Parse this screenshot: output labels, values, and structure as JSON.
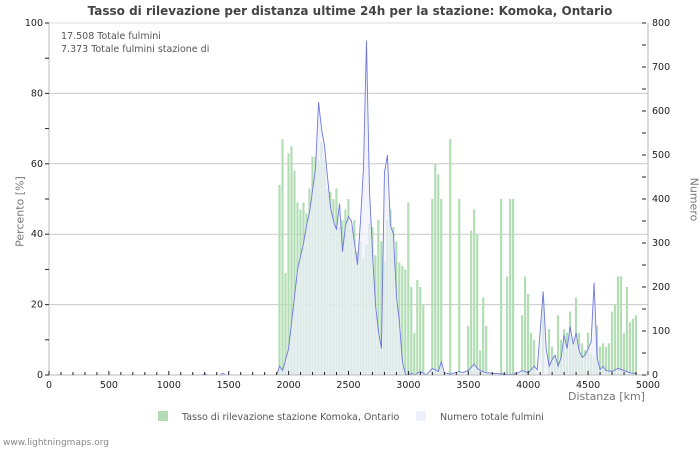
{
  "chart_data": {
    "type": "bar+area",
    "title": "Tasso di rilevazione per distanza ultime 24h per la stazione: Komoka, Ontario",
    "annotations": [
      "17.508 Totale fulmini",
      "7.373 Totale fulmini stazione di"
    ],
    "xlabel": "Distanza   [km]",
    "ylabel_left": "Percento   [%]",
    "ylabel_right": "Numero",
    "xlim": [
      0,
      5000
    ],
    "ylim_left": [
      0,
      100
    ],
    "ylim_right": [
      0,
      800
    ],
    "x_ticks": [
      0,
      500,
      1000,
      1500,
      2000,
      2500,
      3000,
      3500,
      4000,
      4500,
      5000
    ],
    "y_ticks_left": [
      0,
      20,
      40,
      60,
      80,
      100
    ],
    "y_ticks_right": [
      0,
      100,
      200,
      300,
      400,
      500,
      600,
      700,
      800
    ],
    "grid": true,
    "legend_position": "bottom",
    "bin_width_km": 25,
    "series": [
      {
        "name": "Tasso di rilevazione stazione Komoka, Ontario",
        "type": "bar",
        "axis": "left",
        "color": "#b3deb5",
        "x": [
          1925,
          1950,
          1975,
          2000,
          2025,
          2050,
          2075,
          2100,
          2125,
          2150,
          2175,
          2200,
          2225,
          2250,
          2275,
          2300,
          2325,
          2350,
          2375,
          2400,
          2425,
          2450,
          2475,
          2500,
          2525,
          2550,
          2575,
          2600,
          2625,
          2650,
          2675,
          2700,
          2725,
          2750,
          2775,
          2800,
          2825,
          2850,
          2875,
          2900,
          2925,
          2950,
          2975,
          3000,
          3025,
          3050,
          3075,
          3100,
          3125,
          3200,
          3225,
          3250,
          3275,
          3350,
          3425,
          3500,
          3525,
          3550,
          3575,
          3600,
          3625,
          3650,
          3775,
          3825,
          3850,
          3875,
          3950,
          3975,
          4000,
          4025,
          4050,
          4125,
          4175,
          4200,
          4225,
          4250,
          4275,
          4300,
          4325,
          4350,
          4375,
          4400,
          4425,
          4450,
          4475,
          4500,
          4525,
          4550,
          4575,
          4600,
          4625,
          4650,
          4675,
          4700,
          4725,
          4750,
          4775,
          4800,
          4825,
          4850,
          4875,
          4900
        ],
        "values": [
          54,
          67,
          29,
          63,
          65,
          58,
          49,
          47,
          49,
          46,
          53,
          62,
          62,
          61,
          66,
          61,
          53,
          52,
          50,
          53,
          42,
          44,
          47,
          50,
          42,
          44,
          35,
          38,
          33,
          37,
          43,
          42,
          34,
          44,
          38,
          32,
          44,
          47,
          42,
          38,
          32,
          31,
          30,
          49,
          25,
          12,
          27,
          25,
          20,
          50,
          60,
          57,
          50,
          67,
          50,
          14,
          41,
          47,
          40,
          7,
          22,
          14,
          50,
          28,
          50,
          50,
          17,
          28,
          23,
          12,
          10,
          22,
          13,
          8,
          5,
          17,
          10,
          13,
          12,
          18,
          9,
          22,
          12,
          9,
          7,
          12,
          6,
          5,
          14,
          8,
          9,
          8,
          9,
          18,
          20,
          28,
          28,
          12,
          25,
          15,
          16,
          17
        ]
      },
      {
        "name": "Numero totale fulmini",
        "type": "area",
        "axis": "right",
        "color": "#6f78e0",
        "fill": "#eef0fb",
        "x": [
          1275,
          1300,
          1325,
          1425,
          1450,
          1475,
          1900,
          1925,
          1950,
          1975,
          2000,
          2025,
          2050,
          2075,
          2100,
          2125,
          2150,
          2175,
          2200,
          2225,
          2250,
          2275,
          2300,
          2325,
          2350,
          2375,
          2400,
          2425,
          2450,
          2475,
          2500,
          2525,
          2550,
          2575,
          2600,
          2625,
          2650,
          2675,
          2700,
          2725,
          2750,
          2775,
          2800,
          2825,
          2850,
          2875,
          2900,
          2925,
          2950,
          2975,
          3000,
          3025,
          3050,
          3100,
          3125,
          3150,
          3200,
          3250,
          3275,
          3300,
          3350,
          3425,
          3450,
          3500,
          3550,
          3575,
          3600,
          3650,
          3700,
          3750,
          3800,
          3850,
          3900,
          3950,
          4000,
          4050,
          4075,
          4100,
          4125,
          4150,
          4175,
          4200,
          4225,
          4250,
          4275,
          4300,
          4325,
          4350,
          4375,
          4400,
          4425,
          4450,
          4475,
          4500,
          4525,
          4550,
          4575,
          4600,
          4625,
          4650,
          4700,
          4750,
          4800,
          4850,
          4900
        ],
        "values": [
          0,
          3,
          0,
          0,
          4,
          0,
          0,
          20,
          10,
          35,
          60,
          120,
          180,
          240,
          270,
          300,
          340,
          370,
          420,
          470,
          620,
          560,
          520,
          450,
          380,
          350,
          330,
          390,
          280,
          340,
          360,
          350,
          300,
          250,
          350,
          470,
          760,
          420,
          280,
          160,
          100,
          60,
          460,
          500,
          340,
          320,
          180,
          120,
          30,
          2,
          0,
          4,
          0,
          8,
          4,
          0,
          15,
          8,
          30,
          5,
          2,
          8,
          5,
          10,
          25,
          15,
          10,
          5,
          4,
          3,
          2,
          1,
          3,
          10,
          5,
          20,
          12,
          100,
          190,
          60,
          20,
          35,
          45,
          20,
          40,
          90,
          60,
          110,
          70,
          95,
          55,
          40,
          45,
          60,
          75,
          210,
          40,
          12,
          20,
          10,
          8,
          15,
          10,
          5,
          3
        ]
      }
    ]
  },
  "header": {
    "title": "Tasso di rilevazione per distanza ultime 24h per la stazione: Komoka, Ontario"
  },
  "stats": {
    "total": "17.508 Totale fulmini",
    "station": "7.373 Totale fulmini stazione di"
  },
  "axes": {
    "left_label": "Percento   [%]",
    "right_label": "Numero",
    "x_label": "Distanza   [km]"
  },
  "legend": {
    "item1": "Tasso di rilevazione stazione Komoka, Ontario",
    "item2": "Numero totale fulmini"
  },
  "footer": {
    "source": "www.lightningmaps.org"
  }
}
